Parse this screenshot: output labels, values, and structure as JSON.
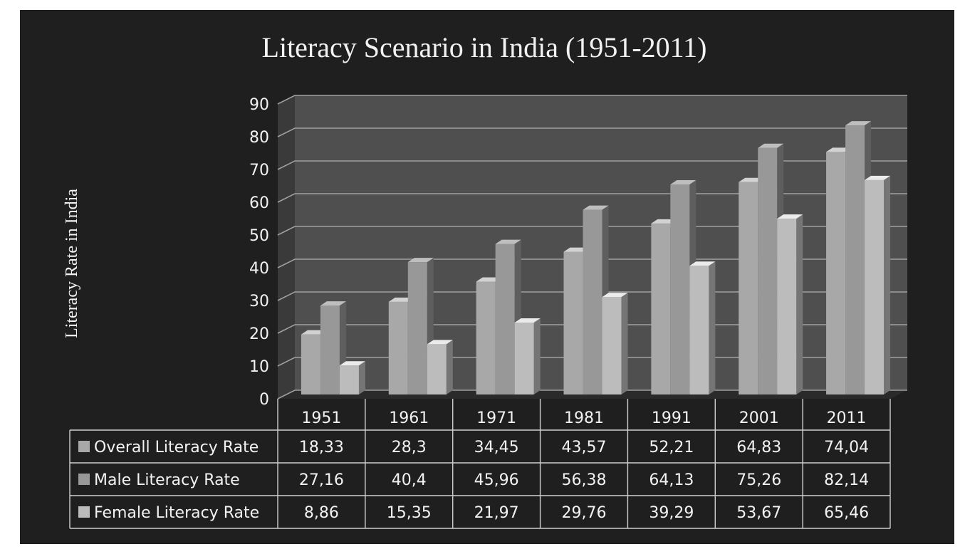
{
  "chart_data": {
    "type": "bar",
    "title": "Literacy Scenario in India (1951-2011)",
    "xlabel": "",
    "ylabel": "Literacy Rate in India",
    "ylim": [
      0,
      90
    ],
    "yticks": [
      0,
      10,
      20,
      30,
      40,
      50,
      60,
      70,
      80,
      90
    ],
    "grid": true,
    "legend": "data-table",
    "categories": [
      "1951",
      "1961",
      "1971",
      "1981",
      "1991",
      "2001",
      "2011"
    ],
    "series": [
      {
        "name": "Overall Literacy Rate",
        "values": [
          18.33,
          28.3,
          34.45,
          43.57,
          52.21,
          64.83,
          74.04
        ],
        "labels": [
          "18,33",
          "28,3",
          "34,45",
          "43,57",
          "52,21",
          "64,83",
          "74,04"
        ],
        "color": "#a8a8a8"
      },
      {
        "name": "Male Literacy Rate",
        "values": [
          27.16,
          40.4,
          45.96,
          56.38,
          64.13,
          75.26,
          82.14
        ],
        "labels": [
          "27,16",
          "40,4",
          "45,96",
          "56,38",
          "64,13",
          "75,26",
          "82,14"
        ],
        "color": "#989898"
      },
      {
        "name": "Female Literacy Rate",
        "values": [
          8.86,
          15.35,
          21.97,
          29.76,
          39.29,
          53.67,
          65.46
        ],
        "labels": [
          "8,86",
          "15,35",
          "21,97",
          "29,76",
          "39,29",
          "53,67",
          "65,46"
        ],
        "color": "#bcbcbc"
      }
    ],
    "colors": {
      "background": "#1f1f1f",
      "plot_back": "#4f4f4f",
      "plot_side": "#3a3a3a",
      "floor": "#2a2a2a",
      "grid": "#a0a0a0",
      "text": "#f2f2f2",
      "table_line": "#d0d0d0"
    }
  }
}
